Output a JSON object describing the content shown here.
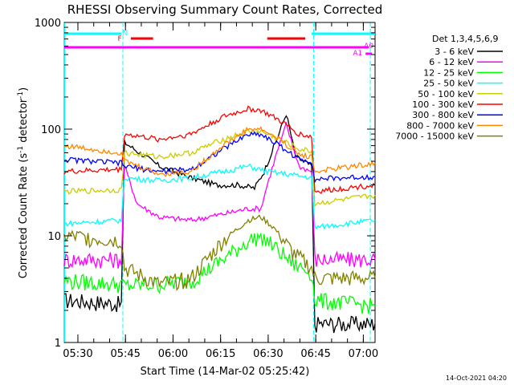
{
  "chart_data": {
    "type": "line",
    "title": "RHESSI Observing Summary Count Rates, Corrected",
    "xlabel": "Start Time (14-Mar-02 05:25:42)",
    "ylabel": "Corrected Count Rate (s⁻¹ detector⁻¹)",
    "ylabel_parts": [
      "Corrected Count Rate (s",
      "-1",
      " detector",
      "-1",
      ")"
    ],
    "yscale": "log",
    "ylim": [
      1,
      1000
    ],
    "xlim_minutes": [
      0,
      98
    ],
    "x_ticks": [
      {
        "label": "05:30",
        "min": 4.3
      },
      {
        "label": "05:45",
        "min": 19.3
      },
      {
        "label": "06:00",
        "min": 34.3
      },
      {
        "label": "06:15",
        "min": 49.3
      },
      {
        "label": "06:30",
        "min": 64.3
      },
      {
        "label": "06:45",
        "min": 79.3
      },
      {
        "label": "07:00",
        "min": 94.3
      }
    ],
    "y_ticks": [
      {
        "label": "1",
        "value": 1
      },
      {
        "label": "10",
        "value": 10
      },
      {
        "label": "100",
        "value": 100
      },
      {
        "label": "1000",
        "value": 1000
      }
    ],
    "legend_title": "Det 1,3,4,5,6,9",
    "legend_placement": "right",
    "series": [
      {
        "name": "3 - 6 keV",
        "color": "#000000",
        "points": [
          [
            0,
            2.5
          ],
          [
            18,
            2.3
          ],
          [
            19,
            75
          ],
          [
            30,
            45
          ],
          [
            40,
            35
          ],
          [
            48,
            30
          ],
          [
            55,
            30
          ],
          [
            60,
            28
          ],
          [
            63,
            40
          ],
          [
            67,
            80
          ],
          [
            70,
            140
          ],
          [
            73,
            55
          ],
          [
            78,
            45
          ],
          [
            79,
            1.5
          ],
          [
            98,
            1.5
          ]
        ]
      },
      {
        "name": "6 - 12 keV",
        "color": "#ff00ff",
        "points": [
          [
            0,
            6
          ],
          [
            18,
            6
          ],
          [
            19,
            45
          ],
          [
            23,
            20
          ],
          [
            30,
            15
          ],
          [
            40,
            14
          ],
          [
            50,
            16
          ],
          [
            58,
            18
          ],
          [
            62,
            18
          ],
          [
            64,
            30
          ],
          [
            67,
            60
          ],
          [
            70,
            110
          ],
          [
            74,
            45
          ],
          [
            78,
            40
          ],
          [
            79,
            6
          ],
          [
            98,
            6
          ]
        ]
      },
      {
        "name": "12 - 25 keV",
        "color": "#00ff00",
        "points": [
          [
            0,
            3.8
          ],
          [
            18,
            3.5
          ],
          [
            19,
            3.4
          ],
          [
            30,
            3.5
          ],
          [
            40,
            3.8
          ],
          [
            50,
            6
          ],
          [
            58,
            9
          ],
          [
            62,
            10
          ],
          [
            66,
            8
          ],
          [
            72,
            5.5
          ],
          [
            78,
            4.5
          ],
          [
            79,
            2.5
          ],
          [
            98,
            2.2
          ]
        ]
      },
      {
        "name": "25 - 50 keV",
        "color": "#00ffff",
        "points": [
          [
            0,
            13
          ],
          [
            18,
            14
          ],
          [
            19,
            35
          ],
          [
            30,
            33
          ],
          [
            40,
            35
          ],
          [
            50,
            40
          ],
          [
            58,
            45
          ],
          [
            64,
            40
          ],
          [
            70,
            38
          ],
          [
            78,
            35
          ],
          [
            79,
            12
          ],
          [
            98,
            14
          ]
        ]
      },
      {
        "name": "50 - 100 keV",
        "color": "#cccc00",
        "points": [
          [
            0,
            26
          ],
          [
            18,
            27
          ],
          [
            19,
            60
          ],
          [
            30,
            55
          ],
          [
            40,
            60
          ],
          [
            50,
            80
          ],
          [
            58,
            95
          ],
          [
            62,
            95
          ],
          [
            68,
            80
          ],
          [
            74,
            65
          ],
          [
            78,
            62
          ],
          [
            79,
            20
          ],
          [
            98,
            24
          ]
        ]
      },
      {
        "name": "100 - 300 keV",
        "color": "#ff0000",
        "points": [
          [
            0,
            40
          ],
          [
            18,
            42
          ],
          [
            19,
            90
          ],
          [
            30,
            80
          ],
          [
            40,
            90
          ],
          [
            50,
            130
          ],
          [
            58,
            155
          ],
          [
            62,
            150
          ],
          [
            68,
            120
          ],
          [
            74,
            90
          ],
          [
            78,
            85
          ],
          [
            79,
            26
          ],
          [
            98,
            30
          ]
        ]
      },
      {
        "name": "300 - 800 keV",
        "color": "#0000ff",
        "points": [
          [
            0,
            52
          ],
          [
            18,
            48
          ],
          [
            19,
            45
          ],
          [
            30,
            40
          ],
          [
            40,
            42
          ],
          [
            50,
            65
          ],
          [
            58,
            90
          ],
          [
            62,
            90
          ],
          [
            68,
            70
          ],
          [
            74,
            52
          ],
          [
            78,
            50
          ],
          [
            79,
            34
          ],
          [
            98,
            36
          ]
        ]
      },
      {
        "name": "800 - 7000 keV",
        "color": "#ff8800",
        "points": [
          [
            0,
            70
          ],
          [
            18,
            60
          ],
          [
            19,
            50
          ],
          [
            30,
            38
          ],
          [
            40,
            40
          ],
          [
            50,
            70
          ],
          [
            58,
            100
          ],
          [
            62,
            100
          ],
          [
            68,
            80
          ],
          [
            74,
            58
          ],
          [
            78,
            55
          ],
          [
            79,
            40
          ],
          [
            98,
            48
          ]
        ]
      },
      {
        "name": "7000 - 15000 keV",
        "color": "#808000",
        "points": [
          [
            0,
            10
          ],
          [
            18,
            9
          ],
          [
            19,
            5
          ],
          [
            30,
            3.5
          ],
          [
            40,
            4
          ],
          [
            50,
            9
          ],
          [
            58,
            14
          ],
          [
            62,
            15
          ],
          [
            66,
            12
          ],
          [
            72,
            7
          ],
          [
            78,
            5
          ],
          [
            79,
            4
          ],
          [
            98,
            4
          ]
        ]
      }
    ],
    "annotations": [
      {
        "label": "N",
        "color": "#00ffff"
      },
      {
        "label": "F",
        "color": "#ff0000"
      },
      {
        "label": "A0",
        "color": "#ff00ff"
      },
      {
        "label": "A1",
        "color": "#ff00ff"
      }
    ],
    "flag_bars": {
      "night": {
        "color": "#00ffff",
        "ranges": [
          [
            0,
            18
          ],
          [
            78,
            98
          ]
        ]
      },
      "flare": {
        "color": "#ff0000",
        "ranges": [
          [
            21,
            28
          ],
          [
            64,
            76
          ]
        ]
      },
      "attenuator_A0": {
        "color": "#ff00ff",
        "ranges": [
          [
            0,
            96
          ]
        ]
      },
      "attenuator_A1": {
        "color": "#ff00ff",
        "ranges": [
          [
            95,
            97
          ]
        ]
      }
    },
    "night_boundaries_minutes": [
      0,
      18.5,
      78.6,
      96.5
    ]
  },
  "footer": {
    "date_stamp": "14-Oct-2021 04:20"
  }
}
